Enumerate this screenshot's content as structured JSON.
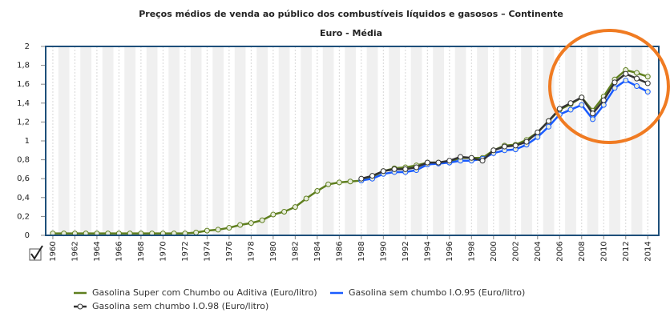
{
  "chart_data": {
    "type": "line",
    "title": "Preços médios de venda ao público dos combustíveis líquidos e gasosos – Continente",
    "subtitle": "Euro - Média",
    "x": [
      1960,
      1961,
      1962,
      1963,
      1964,
      1965,
      1966,
      1967,
      1968,
      1969,
      1970,
      1971,
      1972,
      1973,
      1974,
      1975,
      1976,
      1977,
      1978,
      1979,
      1980,
      1981,
      1982,
      1983,
      1984,
      1985,
      1986,
      1987,
      1988,
      1989,
      1990,
      1991,
      1992,
      1993,
      1994,
      1995,
      1996,
      1997,
      1998,
      1999,
      2000,
      2001,
      2002,
      2003,
      2004,
      2005,
      2006,
      2007,
      2008,
      2009,
      2010,
      2011,
      2012,
      2013,
      2014
    ],
    "xlim": [
      1959.35,
      2015
    ],
    "xticks": [
      1960,
      1962,
      1964,
      1966,
      1968,
      1970,
      1972,
      1974,
      1976,
      1978,
      1980,
      1982,
      1984,
      1986,
      1988,
      1990,
      1992,
      1994,
      1996,
      1998,
      2000,
      2002,
      2004,
      2006,
      2008,
      2010,
      2012,
      2014
    ],
    "ylim": [
      0,
      2
    ],
    "yticks": [
      0,
      {
        "value": 0.2,
        "label": "0,2"
      },
      {
        "value": 0.4,
        "label": "0,4"
      },
      {
        "value": 0.6,
        "label": "0,6"
      },
      {
        "value": 0.8,
        "label": "0,8"
      },
      1,
      {
        "value": 1.2,
        "label": "1,2"
      },
      {
        "value": 1.4,
        "label": "1,4"
      },
      {
        "value": 1.6,
        "label": "1,6"
      },
      {
        "value": 1.8,
        "label": "1,8"
      },
      2
    ],
    "series": [
      {
        "name": "Gasolina Super com Chumbo ou Aditiva (Euro/litro)",
        "color": "#5f7f1f",
        "values": [
          0.02,
          0.02,
          0.02,
          0.02,
          0.02,
          0.02,
          0.02,
          0.02,
          0.02,
          0.02,
          0.02,
          0.02,
          0.02,
          0.03,
          0.05,
          0.06,
          0.08,
          0.11,
          0.13,
          0.16,
          0.22,
          0.25,
          0.3,
          0.39,
          0.47,
          0.54,
          0.56,
          0.57,
          0.58,
          0.62,
          0.68,
          0.71,
          0.72,
          0.74,
          0.77,
          0.77,
          0.78,
          0.82,
          0.82,
          0.82,
          0.9,
          0.95,
          0.96,
          1.01,
          1.09,
          1.21,
          1.33,
          1.39,
          1.46,
          1.32,
          1.47,
          1.65,
          1.75,
          1.72,
          1.68
        ]
      },
      {
        "name": "Gasolina sem chumbo I.O.95 (Euro/litro)",
        "color": "#1a5cff",
        "values": [
          null,
          null,
          null,
          null,
          null,
          null,
          null,
          null,
          null,
          null,
          null,
          null,
          null,
          null,
          null,
          null,
          null,
          null,
          null,
          null,
          null,
          null,
          null,
          null,
          null,
          null,
          null,
          null,
          0.58,
          0.6,
          0.65,
          0.67,
          0.67,
          0.69,
          0.75,
          0.76,
          0.77,
          0.79,
          0.79,
          0.81,
          0.87,
          0.9,
          0.91,
          0.96,
          1.04,
          1.15,
          1.28,
          1.33,
          1.38,
          1.23,
          1.38,
          1.56,
          1.64,
          1.58,
          1.52
        ]
      },
      {
        "name": "Gasolina sem chumbo I.O.98 (Euro/litro)",
        "color": "#333333",
        "values": [
          null,
          null,
          null,
          null,
          null,
          null,
          null,
          null,
          null,
          null,
          null,
          null,
          null,
          null,
          null,
          null,
          null,
          null,
          null,
          null,
          null,
          null,
          null,
          null,
          null,
          null,
          null,
          null,
          0.6,
          0.63,
          0.68,
          0.7,
          0.7,
          0.72,
          0.77,
          0.77,
          0.79,
          0.83,
          0.82,
          0.79,
          0.9,
          0.94,
          0.95,
          0.99,
          1.09,
          1.21,
          1.34,
          1.4,
          1.46,
          1.29,
          1.43,
          1.62,
          1.71,
          1.66,
          1.61
        ]
      }
    ]
  }
}
